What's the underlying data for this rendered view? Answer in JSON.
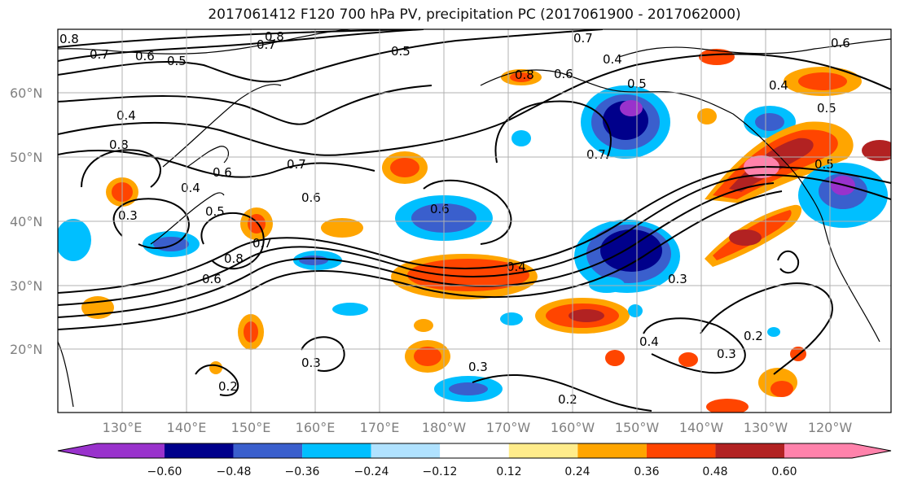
{
  "title": "2017061412 F120 700 hPa PV, precipitation PC (2017061900 - 2017062000)",
  "lat_labels": [
    "20°N",
    "30°N",
    "40°N",
    "50°N",
    "60°N"
  ],
  "lon_labels": [
    "130°E",
    "140°E",
    "150°E",
    "160°E",
    "170°E",
    "180°W",
    "170°W",
    "160°W",
    "150°W",
    "140°W",
    "130°W",
    "120°W"
  ],
  "colorbar": {
    "ticks": [
      "−0.60",
      "−0.48",
      "−0.36",
      "−0.24",
      "−0.12",
      "0.12",
      "0.24",
      "0.36",
      "0.48",
      "0.60"
    ],
    "colors": [
      "#9932cc",
      "#00008b",
      "#3a5fcd",
      "#00bfff",
      "#b0e2ff",
      "#ffffff",
      "#ffec8b",
      "#ffa500",
      "#ff4500",
      "#b22222",
      "#ff82ab"
    ]
  },
  "contour_labels": [
    "0.8",
    "0.7",
    "0.6",
    "0.5",
    "0.8",
    "0.7",
    "0.5",
    "0.8",
    "0.6",
    "0.7",
    "0.4",
    "0.5",
    "0.6",
    "0.4",
    "0.5",
    "0.4",
    "0.8",
    "0.7",
    "0.6",
    "0.4",
    "0.3",
    "0.5",
    "0.6",
    "0.7",
    "0.8",
    "0.6",
    "0.4",
    "0.3",
    "0.4",
    "0.3",
    "0.2",
    "0.3",
    "0.2",
    "0.3",
    "0.2",
    "0.5",
    "0.6",
    "0.7"
  ],
  "colors": {
    "coast": "#000000",
    "grid": "#b0b0b0",
    "contour": "#000000"
  }
}
